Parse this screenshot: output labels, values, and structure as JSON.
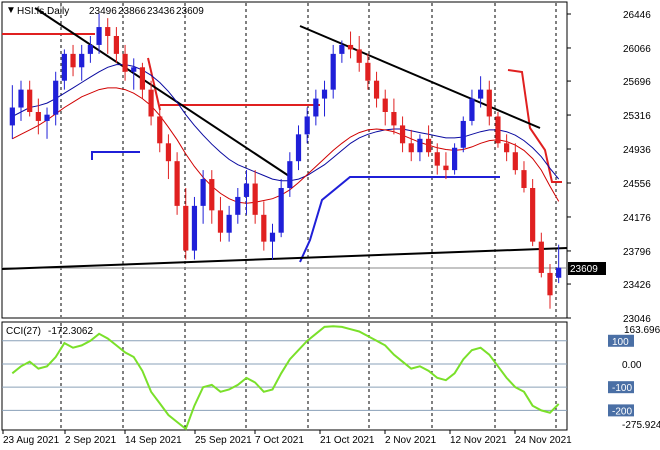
{
  "header": {
    "symbol": "HSI.fs,Daily",
    "open": "23496",
    "high": "23866",
    "low": "23436",
    "close": "23609"
  },
  "current_price_label": "23609",
  "indicator": {
    "name": "CCI(27)",
    "value": "-172.3062",
    "axis_labels": [
      "163.6968",
      "100",
      "0.00",
      "-100",
      "-200",
      "-275.924"
    ]
  },
  "colors": {
    "bull": "#1f1fd8",
    "bear": "#e02020",
    "ma_fast": "#0a0aa0",
    "ma_slow": "#d00000",
    "cci": "#7ae02a",
    "trend": "#000000"
  },
  "chart_data": [
    {
      "type": "candlestick",
      "title": "HSI.fs,Daily",
      "y_ticks": [
        23046,
        23426,
        23796,
        24176,
        24556,
        24936,
        25316,
        25696,
        26066,
        26446
      ],
      "ylim": [
        23046,
        26446
      ],
      "x_tick_labels": [
        "23 Aug 2021",
        "2 Sep 2021",
        "14 Sep 2021",
        "25 Sep 2021",
        "7 Oct 2021",
        "21 Oct 2021",
        "2 Nov 2021",
        "12 Nov 2021",
        "24 Nov 2021"
      ],
      "candles": [
        [
          25200,
          25650,
          25050,
          25400
        ],
        [
          25400,
          25700,
          25250,
          25600
        ],
        [
          25600,
          25700,
          25300,
          25350
        ],
        [
          25350,
          25500,
          25100,
          25250
        ],
        [
          25250,
          25400,
          25050,
          25320
        ],
        [
          25320,
          25800,
          25200,
          25700
        ],
        [
          25700,
          26050,
          25600,
          26000
        ],
        [
          26000,
          26100,
          25750,
          25850
        ],
        [
          25850,
          26100,
          25700,
          26000
        ],
        [
          26000,
          26200,
          25900,
          26100
        ],
        [
          26100,
          26450,
          26000,
          26300
        ],
        [
          26300,
          26400,
          26000,
          26200
        ],
        [
          26200,
          26300,
          25900,
          26000
        ],
        [
          26000,
          26100,
          25700,
          25800
        ],
        [
          25800,
          25950,
          25600,
          25850
        ],
        [
          25850,
          25900,
          25500,
          25600
        ],
        [
          25600,
          25700,
          25200,
          25300
        ],
        [
          25300,
          25400,
          24900,
          25000
        ],
        [
          25000,
          25100,
          24600,
          24800
        ],
        [
          24800,
          24900,
          24200,
          24300
        ],
        [
          24300,
          24500,
          23700,
          23800
        ],
        [
          23800,
          24400,
          23700,
          24300
        ],
        [
          24300,
          24700,
          24100,
          24600
        ],
        [
          24600,
          24700,
          24100,
          24250
        ],
        [
          24250,
          24400,
          23900,
          24000
        ],
        [
          24000,
          24300,
          23900,
          24200
        ],
        [
          24200,
          24500,
          24100,
          24400
        ],
        [
          24400,
          24700,
          24200,
          24550
        ],
        [
          24550,
          24700,
          24100,
          24200
        ],
        [
          24200,
          24350,
          23800,
          23900
        ],
        [
          23900,
          24100,
          23700,
          24000
        ],
        [
          24000,
          24600,
          23950,
          24500
        ],
        [
          24500,
          24900,
          24400,
          24800
        ],
        [
          24800,
          25200,
          24700,
          25100
        ],
        [
          25100,
          25400,
          25000,
          25300
        ],
        [
          25300,
          25600,
          25200,
          25500
        ],
        [
          25500,
          25700,
          25300,
          25600
        ],
        [
          25600,
          26100,
          25500,
          26000
        ],
        [
          26000,
          26150,
          25900,
          26100
        ],
        [
          26100,
          26250,
          25950,
          26050
        ],
        [
          26050,
          26200,
          25800,
          25900
        ],
        [
          25900,
          26000,
          25600,
          25700
        ],
        [
          25700,
          25800,
          25400,
          25500
        ],
        [
          25500,
          25600,
          25200,
          25350
        ],
        [
          25350,
          25500,
          25100,
          25200
        ],
        [
          25200,
          25300,
          24900,
          25000
        ],
        [
          25000,
          25150,
          24800,
          24900
        ],
        [
          24900,
          25100,
          24800,
          25050
        ],
        [
          25050,
          25200,
          24850,
          24900
        ],
        [
          24900,
          25000,
          24650,
          24750
        ],
        [
          24750,
          24900,
          24600,
          24700
        ],
        [
          24700,
          25000,
          24650,
          24950
        ],
        [
          24950,
          25300,
          24900,
          25250
        ],
        [
          25250,
          25600,
          25200,
          25500
        ],
        [
          25500,
          25750,
          25400,
          25600
        ],
        [
          25600,
          25700,
          25200,
          25300
        ],
        [
          25300,
          25350,
          24950,
          25000
        ],
        [
          25000,
          25100,
          24800,
          24900
        ],
        [
          24900,
          25000,
          24650,
          24700
        ],
        [
          24700,
          24800,
          24450,
          24500
        ],
        [
          24500,
          24600,
          23850,
          23900
        ],
        [
          23900,
          24000,
          23500,
          23550
        ],
        [
          23550,
          23650,
          23150,
          23300
        ],
        [
          23496,
          23866,
          23436,
          23609
        ]
      ],
      "ma_fast": [
        25300,
        25350,
        25400,
        25420,
        25450,
        25500,
        25560,
        25620,
        25680,
        25740,
        25800,
        25850,
        25880,
        25880,
        25860,
        25820,
        25760,
        25680,
        25580,
        25460,
        25320,
        25200,
        25090,
        24990,
        24900,
        24820,
        24760,
        24720,
        24680,
        24640,
        24600,
        24580,
        24580,
        24600,
        24640,
        24700,
        24760,
        24840,
        24920,
        25000,
        25060,
        25100,
        25130,
        25150,
        25160,
        25160,
        25140,
        25120,
        25100,
        25080,
        25060,
        25060,
        25070,
        25100,
        25130,
        25150,
        25150,
        25130,
        25090,
        25030,
        24950,
        24850,
        24720,
        24600
      ],
      "ma_slow": [
        25050,
        25100,
        25150,
        25200,
        25260,
        25330,
        25400,
        25460,
        25520,
        25560,
        25600,
        25620,
        25620,
        25600,
        25560,
        25500,
        25420,
        25310,
        25180,
        25040,
        24880,
        24740,
        24620,
        24520,
        24440,
        24380,
        24340,
        24330,
        24340,
        24360,
        24380,
        24420,
        24480,
        24560,
        24650,
        24740,
        24830,
        24920,
        25000,
        25070,
        25120,
        25150,
        25160,
        25150,
        25130,
        25090,
        25050,
        25010,
        24980,
        24950,
        24930,
        24920,
        24930,
        24960,
        25000,
        25030,
        25040,
        25020,
        24980,
        24920,
        24830,
        24700,
        24520,
        24350
      ],
      "series": [
        {
          "name": "CCI(27)",
          "values": [
            -40,
            -10,
            10,
            -20,
            -10,
            30,
            90,
            70,
            80,
            100,
            130,
            110,
            80,
            50,
            30,
            -30,
            -120,
            -170,
            -220,
            -250,
            -280,
            -180,
            -100,
            -90,
            -120,
            -110,
            -90,
            -60,
            -80,
            -120,
            -110,
            -40,
            20,
            60,
            100,
            130,
            160,
            163,
            160,
            150,
            140,
            120,
            100,
            80,
            40,
            10,
            -20,
            -10,
            -30,
            -60,
            -70,
            -40,
            20,
            60,
            70,
            40,
            -10,
            -60,
            -100,
            -120,
            -180,
            -200,
            -210,
            -172
          ]
        }
      ],
      "indicator_ylim": [
        -275.924,
        163.6968
      ],
      "indicator_levels": [
        100,
        0,
        -100,
        -200
      ]
    }
  ]
}
